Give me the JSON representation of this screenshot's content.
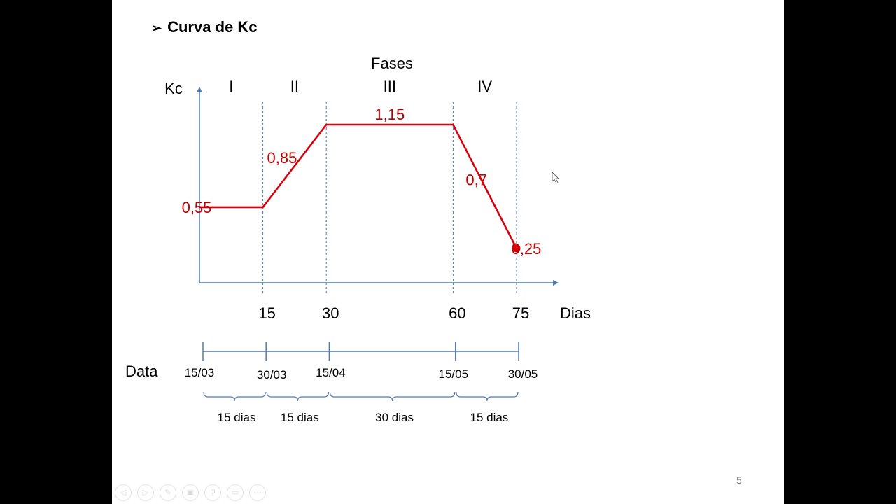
{
  "slide": {
    "title_bullet": "➢",
    "title": "Curva de Kc",
    "page_number": "5"
  },
  "toolbar": [
    {
      "name": "prev-slide-icon",
      "glyph": "◁"
    },
    {
      "name": "next-slide-icon",
      "glyph": "▷"
    },
    {
      "name": "pen-icon",
      "glyph": "✎"
    },
    {
      "name": "slides-icon",
      "glyph": "▣"
    },
    {
      "name": "zoom-icon",
      "glyph": "⚲"
    },
    {
      "name": "subtitles-icon",
      "glyph": "▭"
    },
    {
      "name": "more-icon",
      "glyph": "⋯"
    }
  ],
  "colors": {
    "curve": "#d9000d",
    "axis": "#4f7ab0",
    "label": "#000000",
    "value_label": "#c00000",
    "page_number": "#808080"
  },
  "chart_data": {
    "type": "line",
    "header": "Fases",
    "ylabel": "Kc",
    "xlabel": "Dias",
    "phases": [
      "I",
      "II",
      "III",
      "IV"
    ],
    "x_ticks": [
      "15",
      "30",
      "60",
      "75"
    ],
    "x_tick_values": [
      15,
      30,
      60,
      75
    ],
    "xlim": [
      0,
      85
    ],
    "ylim": [
      0,
      1.5
    ],
    "points": [
      {
        "x": 0,
        "y": 0.55
      },
      {
        "x": 15,
        "y": 0.55
      },
      {
        "x": 30,
        "y": 1.15
      },
      {
        "x": 60,
        "y": 1.15
      },
      {
        "x": 75,
        "y": 0.25
      }
    ],
    "value_labels": [
      {
        "text": "0,55",
        "x": 0,
        "y": 0.55,
        "anchor": "left"
      },
      {
        "text": "0,85",
        "x": 22.5,
        "y": 0.85,
        "anchor": "left-of-line"
      },
      {
        "text": "1,15",
        "x": 45,
        "y": 1.15,
        "anchor": "above"
      },
      {
        "text": "0,7",
        "x": 67.5,
        "y": 0.7,
        "anchor": "right-of-line"
      },
      {
        "text": "0,25",
        "x": 75,
        "y": 0.25,
        "anchor": "right"
      }
    ],
    "endpoint_marker": {
      "x": 75,
      "y": 0.25
    },
    "date_axis": {
      "label": "Data",
      "dates": [
        "15/03",
        "30/03",
        "15/04",
        "15/05",
        "30/05"
      ],
      "day_values": [
        0,
        15,
        30,
        60,
        75
      ],
      "spans": [
        "15 dias",
        "15 dias",
        "30 dias",
        "15 dias"
      ]
    }
  }
}
